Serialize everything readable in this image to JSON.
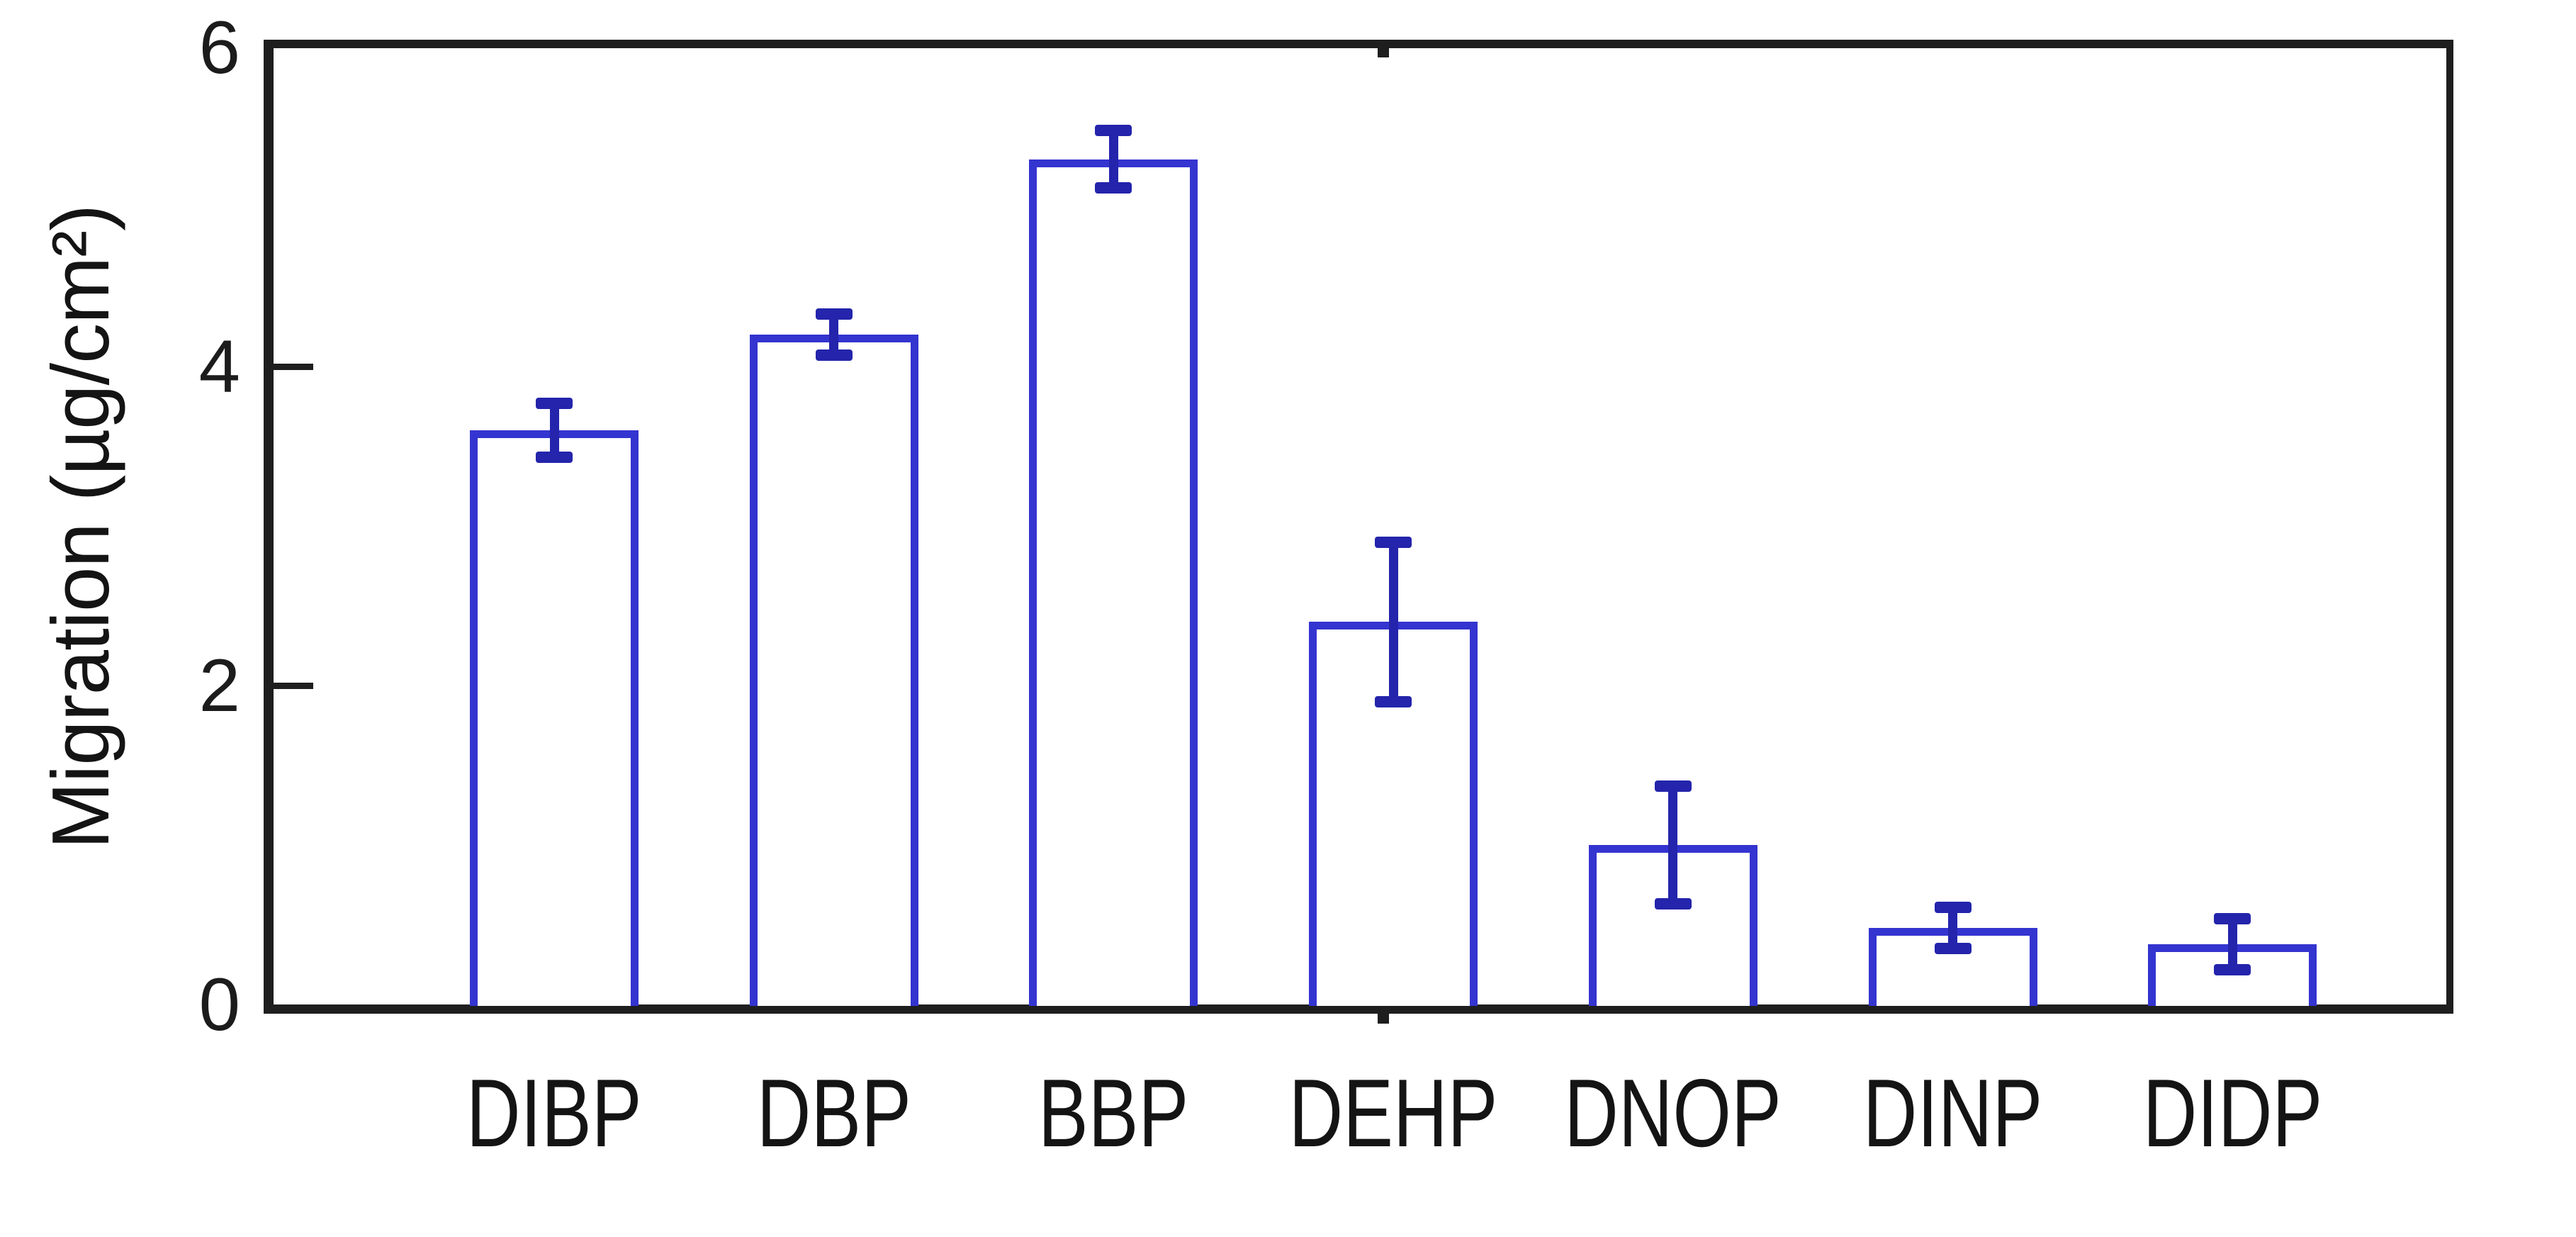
{
  "chart_data": {
    "type": "bar",
    "title": "",
    "xlabel": "",
    "ylabel": "Migration (µg/cm²)",
    "ylim": [
      0,
      6
    ],
    "yticks": [
      0,
      2,
      4,
      6
    ],
    "grid": false,
    "legend": null,
    "bar_fill": "none",
    "categories": [
      "DIBP",
      "DBP",
      "BBP",
      "DEHP",
      "DNOP",
      "DINP",
      "DIDP"
    ],
    "values": [
      3.6,
      4.2,
      5.3,
      2.4,
      1.0,
      0.48,
      0.38
    ],
    "errors": [
      0.17,
      0.13,
      0.18,
      0.5,
      0.37,
      0.13,
      0.16
    ],
    "colors": {
      "bar_edge": "#3434d0",
      "error_bar": "#2424ac",
      "axis": "#1e1e1e",
      "tick_text": "#1c1c1c",
      "background": "#ffffff"
    }
  }
}
